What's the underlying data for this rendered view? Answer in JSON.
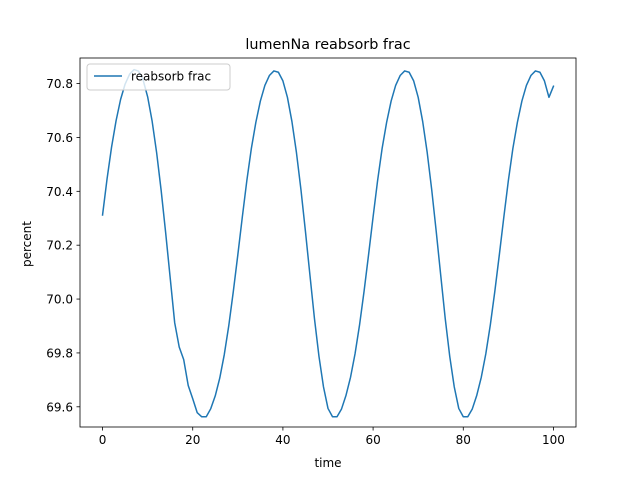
{
  "chart_data": {
    "type": "line",
    "title": "lumenNa reabsorb frac",
    "xlabel": "time",
    "ylabel": "percent",
    "xlim": [
      -5,
      105
    ],
    "ylim": [
      69.525,
      70.895
    ],
    "xticks": [
      0,
      20,
      40,
      60,
      80,
      100
    ],
    "yticks": [
      69.6,
      69.8,
      70.0,
      70.2,
      70.4,
      70.6,
      70.8
    ],
    "xtick_labels": [
      "0",
      "20",
      "40",
      "60",
      "80",
      "100"
    ],
    "ytick_labels": [
      "69.6",
      "69.8",
      "70.0",
      "70.2",
      "70.4",
      "70.6",
      "70.8"
    ],
    "grid": false,
    "legend_position": "upper-left",
    "colors": {
      "series": "#1f77b4"
    },
    "series": [
      {
        "name": "reabsorb frac",
        "x": [
          0,
          1,
          2,
          3,
          4,
          5,
          6,
          7,
          8,
          9,
          10,
          11,
          12,
          13,
          14,
          15,
          16,
          17,
          18,
          19,
          20,
          21,
          22,
          23,
          24,
          25,
          26,
          27,
          28,
          29,
          30,
          31,
          32,
          33,
          34,
          35,
          36,
          37,
          38,
          39,
          40,
          41,
          42,
          43,
          44,
          45,
          46,
          47,
          48,
          49,
          50,
          51,
          52,
          53,
          54,
          55,
          56,
          57,
          58,
          59,
          60,
          61,
          62,
          63,
          64,
          65,
          66,
          67,
          68,
          69,
          70,
          71,
          72,
          73,
          74,
          75,
          76,
          77,
          78,
          79,
          80,
          81,
          82,
          83,
          84,
          85,
          86,
          87,
          88,
          89,
          90,
          91,
          92,
          93,
          94,
          95,
          96,
          97,
          98,
          99,
          100
        ],
        "values": [
          70.312,
          70.446,
          70.564,
          70.662,
          70.741,
          70.798,
          70.835,
          70.852,
          70.846,
          70.813,
          70.751,
          70.66,
          70.543,
          70.403,
          70.246,
          70.079,
          69.912,
          69.822,
          69.775,
          69.679,
          69.63,
          69.578,
          69.563,
          69.563,
          69.593,
          69.641,
          69.707,
          69.794,
          69.902,
          70.028,
          70.164,
          70.305,
          70.44,
          70.559,
          70.656,
          70.735,
          70.793,
          70.83,
          70.847,
          70.842,
          70.81,
          70.749,
          70.659,
          70.544,
          70.406,
          70.251,
          70.088,
          69.927,
          69.787,
          69.674,
          69.594,
          69.563,
          69.563,
          69.592,
          69.643,
          69.71,
          69.797,
          69.904,
          70.029,
          70.165,
          70.305,
          70.44,
          70.559,
          70.656,
          70.735,
          70.793,
          70.83,
          70.847,
          70.842,
          70.81,
          70.749,
          70.659,
          70.544,
          70.406,
          70.251,
          70.088,
          69.927,
          69.787,
          69.674,
          69.594,
          69.563,
          69.563,
          69.592,
          69.643,
          69.71,
          69.797,
          69.904,
          70.029,
          70.165,
          70.305,
          70.44,
          70.559,
          70.656,
          70.735,
          70.793,
          70.83,
          70.847,
          70.842,
          70.81,
          70.749,
          70.79
        ]
      }
    ]
  }
}
